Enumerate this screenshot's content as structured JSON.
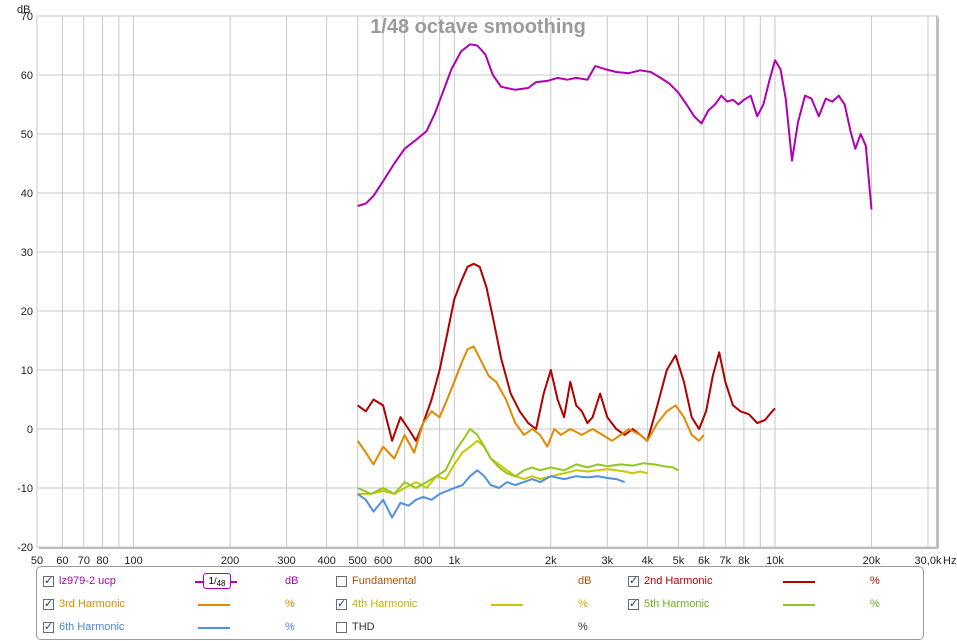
{
  "chart_data": {
    "type": "line",
    "title": "1/48 octave smoothing",
    "y_unit_label": "dB",
    "x_unit_label": "Hz",
    "x_scale": "log",
    "xlim": [
      50,
      32000
    ],
    "ylim": [
      -20,
      70
    ],
    "grid": true,
    "legend_position": "bottom",
    "x_ticks": [
      {
        "v": 50,
        "label": "50"
      },
      {
        "v": 60,
        "label": "60"
      },
      {
        "v": 70,
        "label": "70"
      },
      {
        "v": 80,
        "label": "80"
      },
      {
        "v": 100,
        "label": "100"
      },
      {
        "v": 200,
        "label": "200"
      },
      {
        "v": 300,
        "label": "300"
      },
      {
        "v": 400,
        "label": "400"
      },
      {
        "v": 500,
        "label": "500"
      },
      {
        "v": 600,
        "label": "600"
      },
      {
        "v": 800,
        "label": "800"
      },
      {
        "v": 1000,
        "label": "1k"
      },
      {
        "v": 2000,
        "label": "2k"
      },
      {
        "v": 3000,
        "label": "3k"
      },
      {
        "v": 4000,
        "label": "4k"
      },
      {
        "v": 5000,
        "label": "5k"
      },
      {
        "v": 6000,
        "label": "6k"
      },
      {
        "v": 7000,
        "label": "7k"
      },
      {
        "v": 8000,
        "label": "8k"
      },
      {
        "v": 10000,
        "label": "10k"
      },
      {
        "v": 20000,
        "label": "20k"
      },
      {
        "v": 30000,
        "label": "30,0k"
      }
    ],
    "x_minor": [
      90,
      700,
      900,
      9000
    ],
    "y_ticks": [
      -20,
      -10,
      0,
      10,
      20,
      30,
      40,
      50,
      60,
      70
    ],
    "series": [
      {
        "name": "lz979-2 ucp",
        "color": "#b000b0",
        "points": [
          [
            500,
            37.8
          ],
          [
            530,
            38.2
          ],
          [
            560,
            39.5
          ],
          [
            600,
            42
          ],
          [
            650,
            45
          ],
          [
            700,
            47.5
          ],
          [
            760,
            49
          ],
          [
            820,
            50.5
          ],
          [
            870,
            53.5
          ],
          [
            920,
            57
          ],
          [
            980,
            61
          ],
          [
            1050,
            64
          ],
          [
            1120,
            65.2
          ],
          [
            1180,
            65
          ],
          [
            1250,
            63.5
          ],
          [
            1320,
            60
          ],
          [
            1400,
            58
          ],
          [
            1550,
            57.5
          ],
          [
            1700,
            57.8
          ],
          [
            1800,
            58.8
          ],
          [
            1950,
            59
          ],
          [
            2100,
            59.5
          ],
          [
            2250,
            59.2
          ],
          [
            2400,
            59.5
          ],
          [
            2600,
            59.2
          ],
          [
            2750,
            61.5
          ],
          [
            2950,
            61
          ],
          [
            3200,
            60.5
          ],
          [
            3500,
            60.3
          ],
          [
            3800,
            60.8
          ],
          [
            4100,
            60.5
          ],
          [
            4400,
            59.5
          ],
          [
            4700,
            58.5
          ],
          [
            5000,
            57
          ],
          [
            5300,
            55
          ],
          [
            5600,
            53
          ],
          [
            5900,
            51.8
          ],
          [
            6200,
            54
          ],
          [
            6500,
            55
          ],
          [
            6800,
            56.5
          ],
          [
            7100,
            55.5
          ],
          [
            7400,
            55.8
          ],
          [
            7700,
            55
          ],
          [
            8000,
            55.8
          ],
          [
            8400,
            56.5
          ],
          [
            8800,
            53
          ],
          [
            9200,
            55
          ],
          [
            9600,
            59
          ],
          [
            10000,
            62.5
          ],
          [
            10400,
            61
          ],
          [
            10800,
            56
          ],
          [
            11300,
            45.5
          ],
          [
            11800,
            52
          ],
          [
            12400,
            56.5
          ],
          [
            13000,
            56
          ],
          [
            13700,
            53
          ],
          [
            14400,
            56
          ],
          [
            15100,
            55.5
          ],
          [
            15800,
            56.5
          ],
          [
            16500,
            55
          ],
          [
            17200,
            50.5
          ],
          [
            17800,
            47.5
          ],
          [
            18500,
            50
          ],
          [
            19200,
            48
          ],
          [
            20000,
            37.2
          ]
        ]
      },
      {
        "name": "2nd Harmonic",
        "color": "#b00000",
        "points": [
          [
            500,
            4
          ],
          [
            530,
            3
          ],
          [
            560,
            5
          ],
          [
            600,
            4
          ],
          [
            640,
            -2
          ],
          [
            680,
            2
          ],
          [
            720,
            0
          ],
          [
            760,
            -2
          ],
          [
            800,
            1
          ],
          [
            850,
            5
          ],
          [
            900,
            10
          ],
          [
            950,
            16
          ],
          [
            1000,
            22
          ],
          [
            1050,
            25
          ],
          [
            1100,
            27.5
          ],
          [
            1150,
            28
          ],
          [
            1200,
            27.5
          ],
          [
            1260,
            24
          ],
          [
            1330,
            18
          ],
          [
            1400,
            12
          ],
          [
            1500,
            6
          ],
          [
            1600,
            3
          ],
          [
            1700,
            1
          ],
          [
            1800,
            0
          ],
          [
            1900,
            6
          ],
          [
            2000,
            10
          ],
          [
            2100,
            5
          ],
          [
            2200,
            2
          ],
          [
            2300,
            8
          ],
          [
            2400,
            4
          ],
          [
            2500,
            3
          ],
          [
            2600,
            1
          ],
          [
            2700,
            2
          ],
          [
            2850,
            6
          ],
          [
            3000,
            2
          ],
          [
            3200,
            0
          ],
          [
            3400,
            -1
          ],
          [
            3600,
            0
          ],
          [
            3800,
            -1
          ],
          [
            4000,
            -2
          ],
          [
            4300,
            4
          ],
          [
            4600,
            10
          ],
          [
            4900,
            12.5
          ],
          [
            5200,
            8
          ],
          [
            5500,
            2
          ],
          [
            5800,
            0
          ],
          [
            6100,
            3
          ],
          [
            6400,
            9
          ],
          [
            6700,
            13
          ],
          [
            7000,
            8
          ],
          [
            7400,
            4
          ],
          [
            7800,
            3
          ],
          [
            8300,
            2.5
          ],
          [
            8800,
            1
          ],
          [
            9300,
            1.5
          ],
          [
            9800,
            3
          ],
          [
            10000,
            3.5
          ]
        ]
      },
      {
        "name": "3rd Harmonic",
        "color": "#e08a00",
        "points": [
          [
            500,
            -2
          ],
          [
            530,
            -4
          ],
          [
            560,
            -6
          ],
          [
            600,
            -3
          ],
          [
            650,
            -5
          ],
          [
            700,
            -1
          ],
          [
            750,
            -4
          ],
          [
            800,
            1
          ],
          [
            850,
            3
          ],
          [
            900,
            2
          ],
          [
            950,
            5
          ],
          [
            1000,
            8
          ],
          [
            1050,
            11
          ],
          [
            1100,
            13.5
          ],
          [
            1150,
            14
          ],
          [
            1200,
            12
          ],
          [
            1280,
            9
          ],
          [
            1350,
            8
          ],
          [
            1450,
            5
          ],
          [
            1550,
            1
          ],
          [
            1650,
            -1
          ],
          [
            1750,
            0
          ],
          [
            1850,
            -1
          ],
          [
            1950,
            -3
          ],
          [
            2050,
            0
          ],
          [
            2150,
            -1
          ],
          [
            2300,
            0
          ],
          [
            2500,
            -1
          ],
          [
            2700,
            0
          ],
          [
            2900,
            -1
          ],
          [
            3100,
            -2
          ],
          [
            3300,
            -1
          ],
          [
            3500,
            0
          ],
          [
            3800,
            -1
          ],
          [
            4000,
            -2
          ],
          [
            4300,
            1
          ],
          [
            4600,
            3
          ],
          [
            4900,
            4
          ],
          [
            5200,
            2
          ],
          [
            5500,
            -1
          ],
          [
            5800,
            -2
          ],
          [
            6000,
            -1
          ]
        ]
      },
      {
        "name": "4th Harmonic",
        "color": "#c8c800",
        "points": [
          [
            500,
            -11
          ],
          [
            550,
            -11
          ],
          [
            600,
            -10.5
          ],
          [
            650,
            -11
          ],
          [
            700,
            -10
          ],
          [
            760,
            -9
          ],
          [
            820,
            -10
          ],
          [
            880,
            -8
          ],
          [
            940,
            -8.5
          ],
          [
            1000,
            -6
          ],
          [
            1060,
            -4
          ],
          [
            1120,
            -3
          ],
          [
            1180,
            -2
          ],
          [
            1240,
            -3
          ],
          [
            1300,
            -5
          ],
          [
            1380,
            -6
          ],
          [
            1460,
            -7
          ],
          [
            1550,
            -8
          ],
          [
            1650,
            -8.5
          ],
          [
            1750,
            -8
          ],
          [
            1850,
            -8.5
          ],
          [
            2000,
            -8
          ],
          [
            2200,
            -7.5
          ],
          [
            2400,
            -7
          ],
          [
            2600,
            -7.2
          ],
          [
            2800,
            -7
          ],
          [
            3000,
            -6.8
          ],
          [
            3200,
            -7
          ],
          [
            3400,
            -7.2
          ],
          [
            3600,
            -7.5
          ],
          [
            3800,
            -7.2
          ],
          [
            4000,
            -7.5
          ]
        ]
      },
      {
        "name": "5th Harmonic",
        "color": "#90c820",
        "points": [
          [
            500,
            -10
          ],
          [
            550,
            -11
          ],
          [
            600,
            -10
          ],
          [
            650,
            -11
          ],
          [
            700,
            -9
          ],
          [
            760,
            -10
          ],
          [
            820,
            -9
          ],
          [
            880,
            -8
          ],
          [
            940,
            -7
          ],
          [
            1000,
            -4
          ],
          [
            1060,
            -2
          ],
          [
            1120,
            0
          ],
          [
            1180,
            -1
          ],
          [
            1240,
            -3
          ],
          [
            1300,
            -5
          ],
          [
            1380,
            -6.5
          ],
          [
            1460,
            -7.5
          ],
          [
            1550,
            -8
          ],
          [
            1650,
            -7
          ],
          [
            1750,
            -6.5
          ],
          [
            1850,
            -7
          ],
          [
            2000,
            -6.5
          ],
          [
            2200,
            -7
          ],
          [
            2400,
            -6
          ],
          [
            2600,
            -6.5
          ],
          [
            2800,
            -6
          ],
          [
            3000,
            -6.3
          ],
          [
            3300,
            -6
          ],
          [
            3600,
            -6.2
          ],
          [
            3900,
            -5.8
          ],
          [
            4200,
            -6
          ],
          [
            4500,
            -6.3
          ],
          [
            4800,
            -6.5
          ],
          [
            5000,
            -7
          ]
        ]
      },
      {
        "name": "6th Harmonic",
        "color": "#5090e0",
        "points": [
          [
            500,
            -11
          ],
          [
            530,
            -12
          ],
          [
            560,
            -14
          ],
          [
            600,
            -12
          ],
          [
            640,
            -15
          ],
          [
            680,
            -12.5
          ],
          [
            720,
            -13
          ],
          [
            760,
            -12
          ],
          [
            800,
            -11.5
          ],
          [
            850,
            -12
          ],
          [
            900,
            -11
          ],
          [
            950,
            -10.5
          ],
          [
            1000,
            -10
          ],
          [
            1060,
            -9.5
          ],
          [
            1120,
            -8
          ],
          [
            1180,
            -7
          ],
          [
            1240,
            -8
          ],
          [
            1300,
            -9.5
          ],
          [
            1380,
            -10
          ],
          [
            1460,
            -9
          ],
          [
            1550,
            -9.5
          ],
          [
            1650,
            -9
          ],
          [
            1750,
            -8.5
          ],
          [
            1850,
            -9
          ],
          [
            2000,
            -8
          ],
          [
            2200,
            -8.5
          ],
          [
            2400,
            -8
          ],
          [
            2600,
            -8.2
          ],
          [
            2800,
            -8
          ],
          [
            3000,
            -8.3
          ],
          [
            3200,
            -8.5
          ],
          [
            3400,
            -9
          ]
        ]
      }
    ]
  },
  "legend": {
    "items": [
      {
        "label": "lz979-2 ucp",
        "unit": "dB",
        "color": "#b000b0",
        "checked": true,
        "text_color": "#b000b0",
        "swatch": "badge"
      },
      {
        "label": "Fundamental",
        "unit": "dB",
        "color": "",
        "checked": false,
        "text_color": "#b05000",
        "swatch": "none"
      },
      {
        "label": "2nd Harmonic",
        "unit": "%",
        "color": "#b00000",
        "checked": true,
        "text_color": "#b00000",
        "swatch": "line"
      },
      {
        "label": "3rd Harmonic",
        "unit": "%",
        "color": "#e08a00",
        "checked": true,
        "text_color": "#e08a00",
        "swatch": "line"
      },
      {
        "label": "4th Harmonic",
        "unit": "%",
        "color": "#c8c800",
        "checked": true,
        "text_color": "#c8b000",
        "swatch": "line"
      },
      {
        "label": "5th Harmonic",
        "unit": "%",
        "color": "#90c820",
        "checked": true,
        "text_color": "#70b020",
        "swatch": "line"
      },
      {
        "label": "6th Harmonic",
        "unit": "%",
        "color": "#5090e0",
        "checked": true,
        "text_color": "#4a86d0",
        "swatch": "line"
      },
      {
        "label": "THD",
        "unit": "%",
        "color": "",
        "checked": false,
        "text_color": "#333333",
        "swatch": "none"
      }
    ],
    "smoothing_badge": {
      "num": "1",
      "den": "48"
    }
  }
}
